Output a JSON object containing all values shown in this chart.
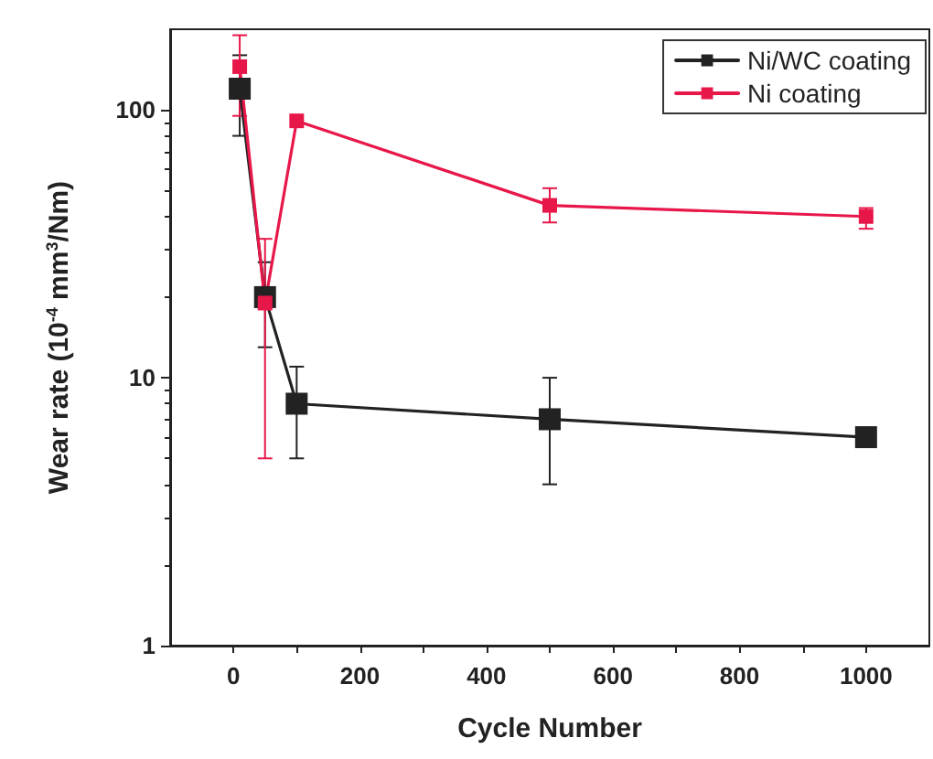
{
  "chart_data": {
    "type": "line",
    "xlabel": "Cycle Number",
    "ylabel": "Wear rate (10$^{-4}$ mm$^{3}$/Nm)",
    "x": [
      10,
      50,
      100,
      500,
      1000
    ],
    "series": [
      {
        "name": "Ni/WC coating",
        "color": "#222222",
        "values": [
          120,
          20,
          8,
          7,
          6
        ],
        "errors": [
          [
            80,
            160
          ],
          [
            13,
            27
          ],
          [
            5,
            11
          ],
          [
            4,
            10
          ],
          null
        ]
      },
      {
        "name": "Ni coating",
        "color": "#e8174a",
        "values": [
          145,
          19,
          91,
          44,
          40
        ],
        "errors": [
          [
            95,
            190
          ],
          [
            5,
            33
          ],
          null,
          [
            38,
            51
          ],
          [
            36,
            43
          ]
        ]
      }
    ],
    "xlim": [
      -100,
      1100
    ],
    "xticks": [
      0,
      200,
      400,
      600,
      800,
      1000
    ],
    "ylim": [
      1,
      200
    ],
    "yticks": [
      1,
      10,
      100
    ],
    "log": true,
    "legend": "top right",
    "marker": "square",
    "line_style": "solid",
    "grid": false
  }
}
